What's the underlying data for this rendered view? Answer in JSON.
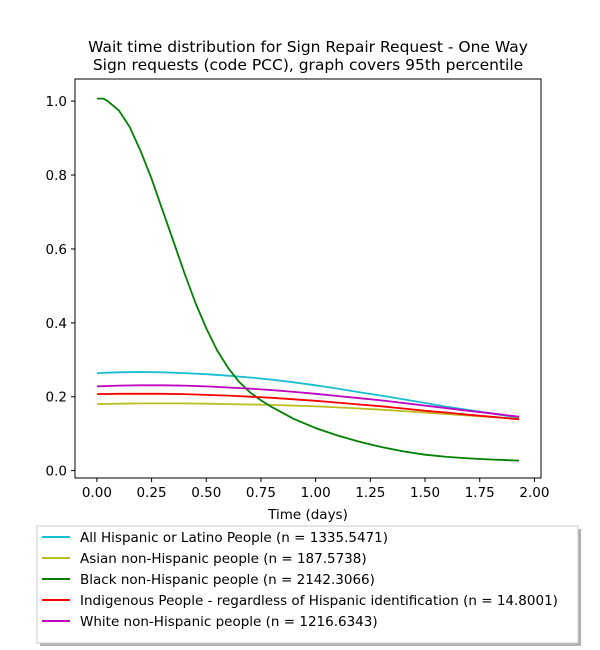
{
  "chart_data": {
    "type": "line",
    "title": [
      "Wait time distribution  for Sign Repair Request - One Way",
      "Sign  requests (code PCC), graph covers 95th percentile"
    ],
    "xlabel": "Time (days)",
    "ylabel": "",
    "xlim": [
      -0.1,
      2.03
    ],
    "ylim": [
      -0.02,
      1.06
    ],
    "xticks": [
      "0.00",
      "0.25",
      "0.50",
      "0.75",
      "1.00",
      "1.25",
      "1.50",
      "1.75",
      "2.00"
    ],
    "yticks": [
      "0.0",
      "0.2",
      "0.4",
      "0.6",
      "0.8",
      "1.0"
    ],
    "grid": false,
    "legend_position": "below",
    "series": [
      {
        "name": "All Hispanic or Latino People (n = 1335.5471)",
        "color": "#17becf",
        "x": [
          0.0,
          0.1,
          0.2,
          0.3,
          0.4,
          0.5,
          0.6,
          0.7,
          0.8,
          0.9,
          1.0,
          1.1,
          1.2,
          1.3,
          1.4,
          1.5,
          1.6,
          1.7,
          1.8,
          1.93
        ],
        "y": [
          0.264,
          0.266,
          0.267,
          0.266,
          0.264,
          0.261,
          0.257,
          0.252,
          0.246,
          0.239,
          0.231,
          0.222,
          0.212,
          0.203,
          0.193,
          0.183,
          0.173,
          0.164,
          0.155,
          0.143
        ]
      },
      {
        "name": "Asian non-Hispanic people (n = 187.5738)",
        "color": "#bcbd22",
        "x": [
          0.0,
          0.1,
          0.2,
          0.3,
          0.4,
          0.5,
          0.6,
          0.7,
          0.8,
          0.9,
          1.0,
          1.1,
          1.2,
          1.3,
          1.4,
          1.5,
          1.6,
          1.7,
          1.8,
          1.93
        ],
        "y": [
          0.18,
          0.181,
          0.182,
          0.182,
          0.182,
          0.181,
          0.18,
          0.179,
          0.178,
          0.176,
          0.174,
          0.171,
          0.168,
          0.165,
          0.161,
          0.157,
          0.153,
          0.149,
          0.145,
          0.14
        ]
      },
      {
        "name": "Black non-Hispanic people (n = 2142.3066)",
        "color": "#008000",
        "x": [
          0.0,
          0.03,
          0.05,
          0.1,
          0.15,
          0.2,
          0.25,
          0.3,
          0.35,
          0.4,
          0.45,
          0.5,
          0.55,
          0.6,
          0.65,
          0.7,
          0.75,
          0.8,
          0.9,
          1.0,
          1.1,
          1.2,
          1.3,
          1.4,
          1.5,
          1.6,
          1.7,
          1.8,
          1.93
        ],
        "y": [
          1.007,
          1.007,
          1.0,
          0.975,
          0.93,
          0.865,
          0.79,
          0.705,
          0.62,
          0.535,
          0.455,
          0.385,
          0.325,
          0.278,
          0.24,
          0.212,
          0.19,
          0.172,
          0.14,
          0.115,
          0.095,
          0.078,
          0.064,
          0.052,
          0.043,
          0.037,
          0.033,
          0.03,
          0.027
        ]
      },
      {
        "name": "Indigenous People - regardless of Hispanic identification (n = 14.8001)",
        "color": "#ff0000",
        "x": [
          0.0,
          0.1,
          0.2,
          0.3,
          0.4,
          0.5,
          0.6,
          0.7,
          0.8,
          0.9,
          1.0,
          1.1,
          1.2,
          1.3,
          1.4,
          1.5,
          1.6,
          1.7,
          1.8,
          1.93
        ],
        "y": [
          0.207,
          0.208,
          0.208,
          0.208,
          0.207,
          0.205,
          0.203,
          0.2,
          0.197,
          0.193,
          0.189,
          0.184,
          0.179,
          0.174,
          0.168,
          0.162,
          0.157,
          0.151,
          0.146,
          0.139
        ]
      },
      {
        "name": "White non-Hispanic people (n = 1216.6343)",
        "color": "#bf00bf",
        "x": [
          0.0,
          0.1,
          0.2,
          0.3,
          0.4,
          0.5,
          0.6,
          0.7,
          0.8,
          0.9,
          1.0,
          1.1,
          1.2,
          1.3,
          1.4,
          1.5,
          1.6,
          1.7,
          1.8,
          1.93
        ],
        "y": [
          0.228,
          0.23,
          0.231,
          0.231,
          0.23,
          0.228,
          0.225,
          0.222,
          0.218,
          0.213,
          0.208,
          0.202,
          0.196,
          0.19,
          0.183,
          0.176,
          0.169,
          0.162,
          0.155,
          0.146
        ]
      }
    ]
  }
}
